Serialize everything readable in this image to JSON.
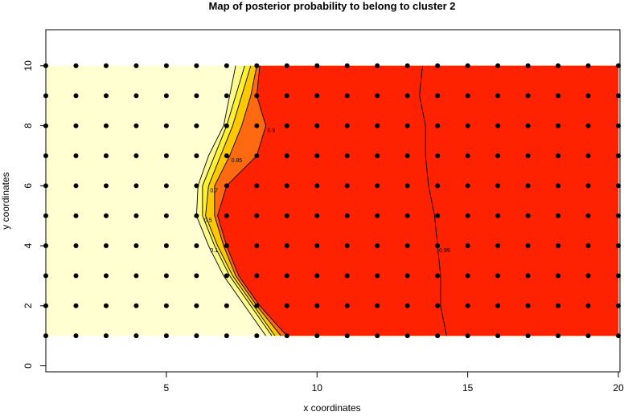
{
  "chart_data": {
    "type": "contour-map",
    "title": "Map of posterior probability to belong to cluster  2",
    "xlabel": "x coordinates",
    "ylabel": "y coordinates",
    "xlim": [
      1,
      20
    ],
    "ylim": [
      -0.2,
      11.2
    ],
    "xticks": [
      5,
      10,
      15,
      20
    ],
    "yticks": [
      0,
      2,
      4,
      6,
      8,
      10
    ],
    "grid_x": [
      1,
      2,
      3,
      4,
      5,
      6,
      7,
      8,
      9,
      10,
      11,
      12,
      13,
      14,
      15,
      16,
      17,
      18,
      19,
      20
    ],
    "grid_y": [
      1,
      2,
      3,
      4,
      5,
      6,
      7,
      8,
      9,
      10
    ],
    "point_color": "#000000",
    "base_color": "#ffffd2",
    "contour_y": [
      1,
      2,
      3,
      4,
      5,
      6,
      7,
      8,
      9,
      10
    ],
    "contours": [
      {
        "level": 0.1,
        "fill": "#fffa8c",
        "x": [
          8.3,
          7.6,
          6.9,
          6.4,
          6.0,
          6.05,
          6.4,
          6.9,
          7.1,
          7.3
        ]
      },
      {
        "level": 0.5,
        "fill": "#fff030",
        "x": [
          8.5,
          7.8,
          7.1,
          6.6,
          6.2,
          6.2,
          6.6,
          7.0,
          7.3,
          7.6
        ]
      },
      {
        "level": 0.7,
        "fill": "#ffc800",
        "x": [
          8.6,
          7.9,
          7.2,
          6.7,
          6.3,
          6.4,
          6.8,
          7.2,
          7.5,
          7.8
        ]
      },
      {
        "level": 0.85,
        "fill": "#ff6a10",
        "x": [
          8.8,
          8.0,
          7.3,
          6.9,
          6.6,
          6.6,
          7.1,
          7.5,
          7.8,
          8.0
        ]
      },
      {
        "level": 0.9,
        "fill": "#ff2200",
        "x": [
          9.0,
          8.1,
          7.4,
          7.0,
          6.7,
          7.0,
          8.0,
          8.3,
          8.0,
          8.1
        ]
      },
      {
        "level": 0.99,
        "fill": "#ff2200",
        "x": [
          14.3,
          14.1,
          14.1,
          14.0,
          13.9,
          13.7,
          13.6,
          13.6,
          13.4,
          13.5
        ]
      }
    ]
  }
}
